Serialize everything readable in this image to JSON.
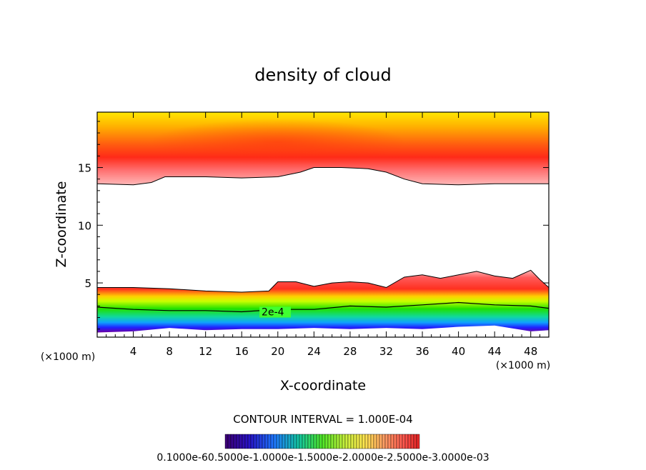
{
  "chart_data": {
    "type": "filled-contour",
    "title": "density of cloud",
    "xlabel": "X-coordinate",
    "ylabel": "Z-coordinate",
    "x_unit": "(×1000 m)",
    "xlim": [
      0,
      50
    ],
    "ylim": [
      0.3,
      19.8
    ],
    "x_ticks": [
      4,
      8,
      12,
      16,
      20,
      24,
      28,
      32,
      36,
      40,
      44,
      48
    ],
    "y_ticks": [
      5,
      10,
      15
    ],
    "contour_interval_label": "CONTOUR INTERVAL = 1.000E-04",
    "contour_line_label": "2e-4",
    "colorbar_labels": "0.1000e-60.5000e-1.0000e-1.5000e-2.0000e-2.5000e-3.0000e-03",
    "upper_cloud_base": [
      [
        0,
        13.6
      ],
      [
        4,
        13.5
      ],
      [
        6,
        13.7
      ],
      [
        7.5,
        14.2
      ],
      [
        12,
        14.2
      ],
      [
        16,
        14.1
      ],
      [
        20,
        14.2
      ],
      [
        22.5,
        14.6
      ],
      [
        24,
        15.0
      ],
      [
        27,
        15.0
      ],
      [
        30,
        14.9
      ],
      [
        32,
        14.6
      ],
      [
        34,
        14.0
      ],
      [
        36,
        13.6
      ],
      [
        40,
        13.5
      ],
      [
        44,
        13.6
      ],
      [
        50,
        13.6
      ]
    ],
    "lower_cloud_top": [
      [
        0,
        4.6
      ],
      [
        4,
        4.6
      ],
      [
        8,
        4.5
      ],
      [
        12,
        4.3
      ],
      [
        16,
        4.2
      ],
      [
        19,
        4.3
      ],
      [
        20,
        5.1
      ],
      [
        22,
        5.1
      ],
      [
        24,
        4.7
      ],
      [
        26,
        5.0
      ],
      [
        28,
        5.1
      ],
      [
        30,
        5.0
      ],
      [
        32,
        4.6
      ],
      [
        34,
        5.5
      ],
      [
        36,
        5.7
      ],
      [
        38,
        5.4
      ],
      [
        40,
        5.7
      ],
      [
        42,
        6.0
      ],
      [
        44,
        5.6
      ],
      [
        46,
        5.4
      ],
      [
        48,
        6.1
      ],
      [
        49,
        5.3
      ],
      [
        50,
        4.6
      ]
    ],
    "contour_2e4": [
      [
        0,
        2.9
      ],
      [
        4,
        2.7
      ],
      [
        8,
        2.6
      ],
      [
        12,
        2.6
      ],
      [
        16,
        2.5
      ],
      [
        20,
        2.7
      ],
      [
        24,
        2.7
      ],
      [
        28,
        3.0
      ],
      [
        32,
        2.9
      ],
      [
        36,
        3.1
      ],
      [
        40,
        3.3
      ],
      [
        44,
        3.1
      ],
      [
        48,
        3.0
      ],
      [
        50,
        2.8
      ]
    ],
    "lower_cloud_base": [
      [
        0,
        0.7
      ],
      [
        4,
        0.8
      ],
      [
        8,
        1.1
      ],
      [
        12,
        0.9
      ],
      [
        16,
        1.0
      ],
      [
        20,
        1.0
      ],
      [
        24,
        1.1
      ],
      [
        28,
        1.0
      ],
      [
        32,
        1.1
      ],
      [
        36,
        1.0
      ],
      [
        40,
        1.2
      ],
      [
        44,
        1.3
      ],
      [
        48,
        0.8
      ],
      [
        50,
        0.9
      ]
    ]
  }
}
